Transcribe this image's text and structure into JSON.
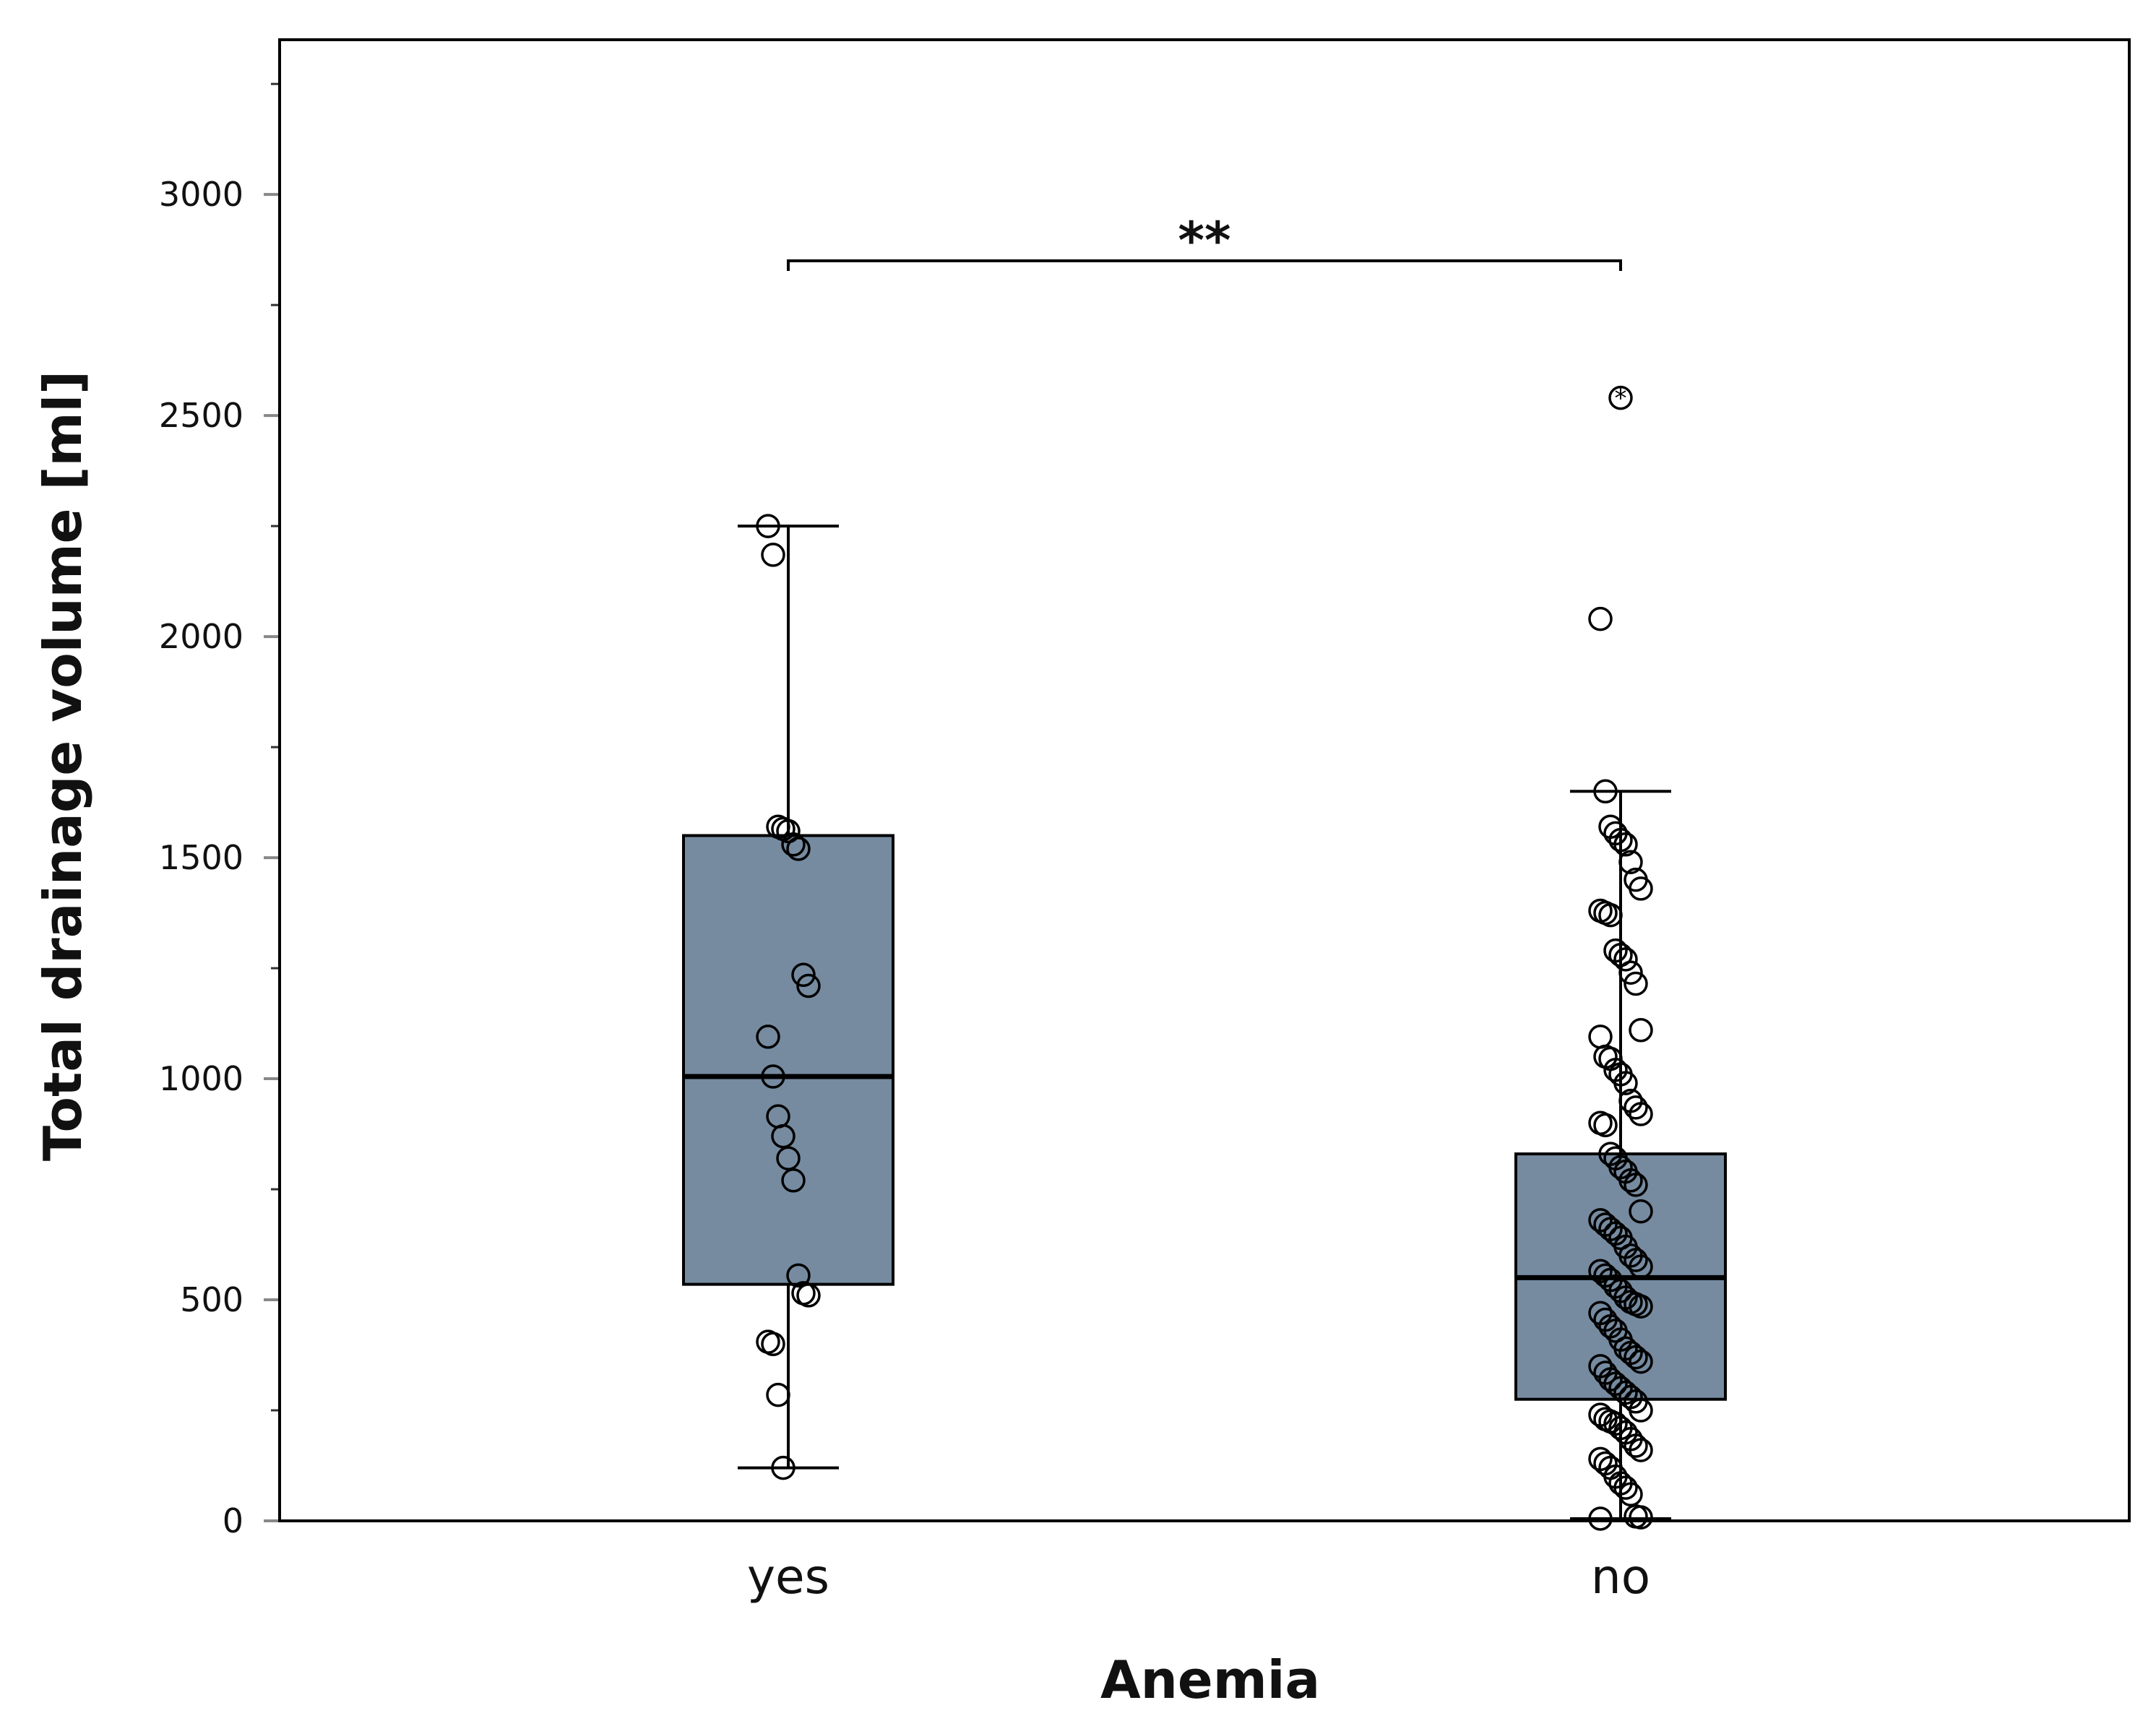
{
  "chart_data": {
    "type": "box",
    "title": "",
    "xlabel": "Anemia",
    "ylabel": "Total drainage volume [ml]",
    "ylim": [
      0,
      3350
    ],
    "yticks": [
      0,
      500,
      1000,
      1500,
      2000,
      2500,
      3000
    ],
    "minor_tick_step": 250,
    "categories": [
      "yes",
      "no"
    ],
    "colors": {
      "box_fill": "#768ba0",
      "stroke": "#000000"
    },
    "boxes": [
      {
        "category": "yes",
        "whisker_low": 120,
        "q1": 535,
        "median": 1005,
        "q3": 1550,
        "whisker_high": 2250,
        "points": [
          2250,
          2185,
          1570,
          1565,
          1560,
          1530,
          1520,
          1235,
          1210,
          1095,
          1005,
          915,
          870,
          820,
          770,
          555,
          515,
          510,
          405,
          400,
          285,
          120
        ],
        "outliers": []
      },
      {
        "category": "no",
        "whisker_low": 5,
        "q1": 275,
        "median": 550,
        "q3": 830,
        "whisker_high": 1650,
        "points": [
          2040,
          1650,
          1570,
          1555,
          1540,
          1530,
          1490,
          1450,
          1430,
          1380,
          1375,
          1370,
          1290,
          1280,
          1270,
          1240,
          1215,
          1110,
          1095,
          1050,
          1045,
          1020,
          1010,
          990,
          950,
          935,
          920,
          900,
          895,
          830,
          820,
          800,
          790,
          770,
          760,
          700,
          680,
          670,
          660,
          650,
          640,
          620,
          600,
          590,
          575,
          565,
          555,
          545,
          530,
          520,
          505,
          495,
          490,
          485,
          470,
          455,
          440,
          430,
          410,
          390,
          380,
          370,
          360,
          350,
          335,
          320,
          310,
          300,
          290,
          280,
          270,
          250,
          240,
          230,
          225,
          220,
          210,
          200,
          185,
          170,
          160,
          140,
          130,
          120,
          100,
          85,
          75,
          60,
          10,
          8,
          5
        ],
        "outliers": [
          2540
        ]
      }
    ],
    "significance": {
      "label": "**",
      "from": "yes",
      "to": "no",
      "y": 2850
    }
  }
}
